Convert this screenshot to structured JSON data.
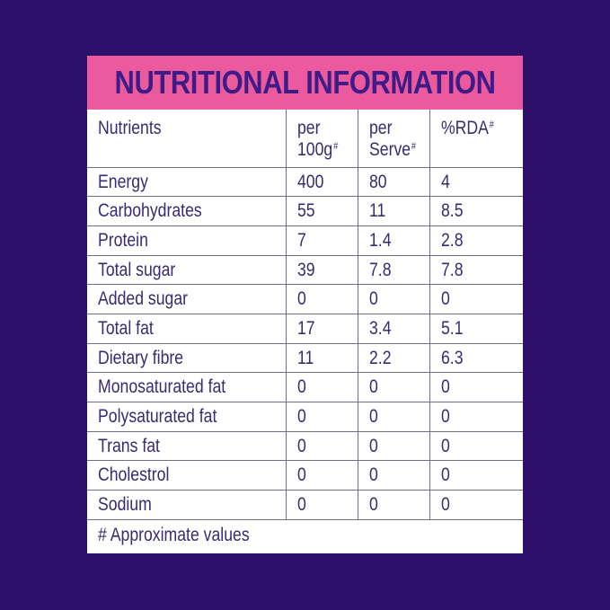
{
  "title": "NUTRITIONAL INFORMATION",
  "header": {
    "nutrients": "Nutrients",
    "per100g_line1": "per",
    "per100g_line2": "100g",
    "perServe_line1": "per",
    "perServe_line2": "Serve",
    "rda": "%RDA",
    "hash": "#"
  },
  "rows": [
    {
      "name": "Energy",
      "per100g": "400",
      "perServe": "80",
      "rda": "4"
    },
    {
      "name": "Carbohydrates",
      "per100g": "55",
      "perServe": "11",
      "rda": "8.5"
    },
    {
      "name": "Protein",
      "per100g": "7",
      "perServe": "1.4",
      "rda": "2.8"
    },
    {
      "name": "Total sugar",
      "per100g": "39",
      "perServe": "7.8",
      "rda": "7.8"
    },
    {
      "name": "Added sugar",
      "per100g": "0",
      "perServe": "0",
      "rda": "0"
    },
    {
      "name": "Total fat",
      "per100g": "17",
      "perServe": "3.4",
      "rda": "5.1"
    },
    {
      "name": "Dietary fibre",
      "per100g": "11",
      "perServe": "2.2",
      "rda": "6.3"
    },
    {
      "name": "Monosaturated fat",
      "per100g": "0",
      "perServe": "0",
      "rda": "0"
    },
    {
      "name": "Polysaturated fat",
      "per100g": "0",
      "perServe": "0",
      "rda": "0"
    },
    {
      "name": "Trans fat",
      "per100g": "0",
      "perServe": "0",
      "rda": "0"
    },
    {
      "name": "Cholestrol",
      "per100g": "0",
      "perServe": "0",
      "rda": "0"
    },
    {
      "name": "Sodium",
      "per100g": "0",
      "perServe": "0",
      "rda": "0"
    }
  ],
  "footnote": "# Approximate values",
  "colors": {
    "background": "#2c1069",
    "title_bar": "#eb5a9d",
    "title_text": "#3f1b87",
    "body_text": "#3a2a72",
    "grid_lines": "#6e6e8a"
  }
}
